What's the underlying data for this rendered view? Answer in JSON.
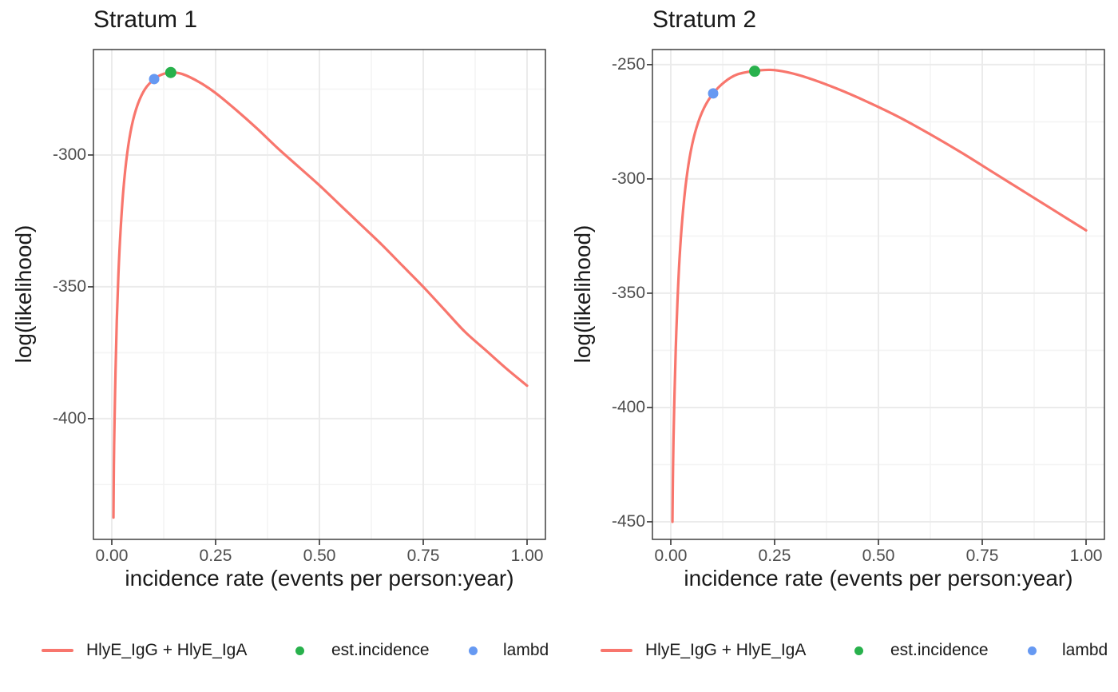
{
  "figure": {
    "background": "#ffffff",
    "text_color": "#1a1a1a",
    "tick_label_color": "#4d4d4d",
    "panel_border_color": "#333333",
    "grid_major_color": "#ebebeb",
    "grid_minor_color": "#f4f4f4"
  },
  "chart_data": [
    {
      "type": "line",
      "title": "Stratum 1",
      "xlabel": "incidence rate (events per person:year)",
      "ylabel": "log(likelihood)",
      "xlim": [
        -0.0442,
        1.0442
      ],
      "ylim": [
        -445.8,
        -260.0
      ],
      "grid": true,
      "legend_position": "bottom",
      "x_ticks": [
        {
          "v": 0.0,
          "label": "0.00"
        },
        {
          "v": 0.25,
          "label": "0.25"
        },
        {
          "v": 0.5,
          "label": "0.50"
        },
        {
          "v": 0.75,
          "label": "0.75"
        },
        {
          "v": 1.0,
          "label": "1.00"
        }
      ],
      "y_ticks": [
        {
          "v": -300,
          "label": "-300"
        },
        {
          "v": -350,
          "label": "-350"
        },
        {
          "v": -400,
          "label": "-400"
        }
      ],
      "x_minor": [
        0.125,
        0.375,
        0.625,
        0.875
      ],
      "y_minor": [
        -275,
        -325,
        -375,
        -425
      ],
      "series": [
        {
          "name": "HlyE_IgG + HlyE_IgA",
          "color": "#F8766D",
          "points": [
            [
              0.004,
              -437.5
            ],
            [
              0.005,
              -418
            ],
            [
              0.0065,
              -402
            ],
            [
              0.009,
              -382
            ],
            [
              0.012,
              -363
            ],
            [
              0.016,
              -345
            ],
            [
              0.021,
              -329
            ],
            [
              0.028,
              -313
            ],
            [
              0.037,
              -299.5
            ],
            [
              0.048,
              -289
            ],
            [
              0.062,
              -281
            ],
            [
              0.08,
              -275
            ],
            [
              0.102,
              -271.2
            ],
            [
              0.12,
              -269.5
            ],
            [
              0.142,
              -268.7
            ],
            [
              0.17,
              -269.3
            ],
            [
              0.21,
              -272.3
            ],
            [
              0.25,
              -276.5
            ],
            [
              0.3,
              -283
            ],
            [
              0.35,
              -290
            ],
            [
              0.4,
              -297.5
            ],
            [
              0.45,
              -304.5
            ],
            [
              0.5,
              -311.5
            ],
            [
              0.55,
              -319
            ],
            [
              0.6,
              -326.5
            ],
            [
              0.65,
              -334
            ],
            [
              0.7,
              -342
            ],
            [
              0.75,
              -350
            ],
            [
              0.8,
              -358.5
            ],
            [
              0.85,
              -367
            ],
            [
              0.9,
              -374
            ],
            [
              0.95,
              -381
            ],
            [
              1.0,
              -387.5
            ]
          ]
        }
      ],
      "markers": [
        {
          "name": "est.incidence",
          "color": "#28B14C",
          "x": 0.142,
          "y": -268.7,
          "r": 7
        },
        {
          "name": "lambd",
          "color": "#6699F2",
          "x": 0.102,
          "y": -271.2,
          "r": 6.5
        }
      ],
      "legend": [
        {
          "key": "line",
          "label": "HlyE_IgG + HlyE_IgA",
          "color": "#F8766D"
        },
        {
          "key": "point",
          "label": "est.incidence",
          "color": "#28B14C"
        },
        {
          "key": "point",
          "label": "lambd",
          "color": "#6699F2"
        }
      ]
    },
    {
      "type": "line",
      "title": "Stratum 2",
      "xlabel": "incidence rate (events per person:year)",
      "ylabel": "log(likelihood)",
      "xlim": [
        -0.0442,
        1.0442
      ],
      "ylim": [
        -457.7,
        -243.4
      ],
      "grid": true,
      "legend_position": "bottom",
      "x_ticks": [
        {
          "v": 0.0,
          "label": "0.00"
        },
        {
          "v": 0.25,
          "label": "0.25"
        },
        {
          "v": 0.5,
          "label": "0.50"
        },
        {
          "v": 0.75,
          "label": "0.75"
        },
        {
          "v": 1.0,
          "label": "1.00"
        }
      ],
      "y_ticks": [
        {
          "v": -250,
          "label": "-250"
        },
        {
          "v": -300,
          "label": "-300"
        },
        {
          "v": -350,
          "label": "-350"
        },
        {
          "v": -400,
          "label": "-400"
        },
        {
          "v": -450,
          "label": "-450"
        }
      ],
      "x_minor": [
        0.125,
        0.375,
        0.625,
        0.875
      ],
      "y_minor": [
        -275,
        -325,
        -375,
        -425
      ],
      "series": [
        {
          "name": "HlyE_IgG + HlyE_IgA",
          "color": "#F8766D",
          "points": [
            [
              0.004,
              -450
            ],
            [
              0.005,
              -432
            ],
            [
              0.0065,
              -414
            ],
            [
              0.009,
              -394
            ],
            [
              0.012,
              -374
            ],
            [
              0.016,
              -354
            ],
            [
              0.021,
              -335
            ],
            [
              0.028,
              -317
            ],
            [
              0.037,
              -301
            ],
            [
              0.048,
              -288
            ],
            [
              0.062,
              -277.5
            ],
            [
              0.08,
              -269
            ],
            [
              0.102,
              -262.6
            ],
            [
              0.13,
              -257.5
            ],
            [
              0.16,
              -254.3
            ],
            [
              0.2,
              -252.8
            ],
            [
              0.24,
              -252.3
            ],
            [
              0.28,
              -253.3
            ],
            [
              0.33,
              -255.8
            ],
            [
              0.4,
              -260.5
            ],
            [
              0.47,
              -266
            ],
            [
              0.55,
              -273
            ],
            [
              0.625,
              -280.5
            ],
            [
              0.7,
              -288.5
            ],
            [
              0.775,
              -297
            ],
            [
              0.85,
              -305.5
            ],
            [
              0.925,
              -314
            ],
            [
              1.0,
              -322.5
            ]
          ]
        }
      ],
      "markers": [
        {
          "name": "est.incidence",
          "color": "#28B14C",
          "x": 0.202,
          "y": -252.9,
          "r": 7
        },
        {
          "name": "lambd",
          "color": "#6699F2",
          "x": 0.102,
          "y": -262.6,
          "r": 6.5
        }
      ],
      "legend": [
        {
          "key": "line",
          "label": "HlyE_IgG + HlyE_IgA",
          "color": "#F8766D"
        },
        {
          "key": "point",
          "label": "est.incidence",
          "color": "#28B14C"
        },
        {
          "key": "point",
          "label": "lambd",
          "color": "#6699F2"
        }
      ]
    }
  ]
}
